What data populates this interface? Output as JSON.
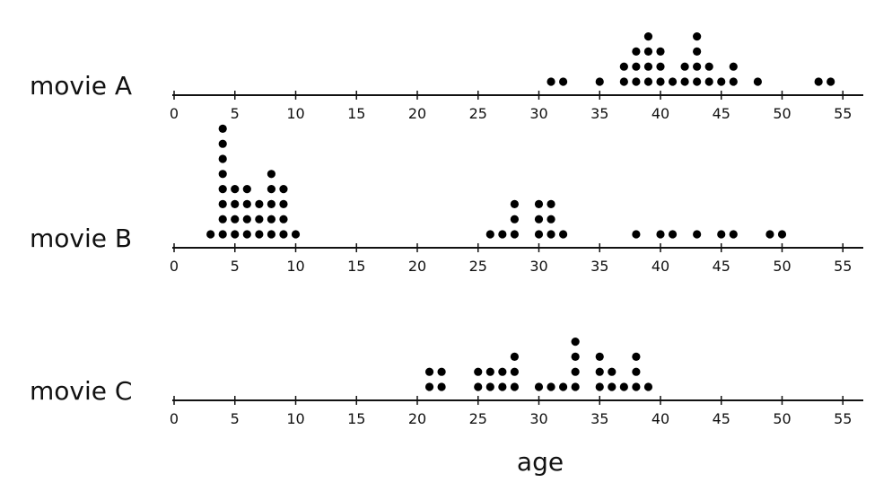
{
  "chart_data": {
    "type": "dot plot",
    "x_axis_label": "age",
    "x_ticks": [
      0,
      5,
      10,
      15,
      20,
      25,
      30,
      35,
      40,
      45,
      50,
      55
    ],
    "x_range": [
      0,
      57
    ],
    "plots": [
      {
        "label": "movie A",
        "points": [
          {
            "age": 31,
            "count": 1
          },
          {
            "age": 32,
            "count": 1
          },
          {
            "age": 35,
            "count": 1
          },
          {
            "age": 37,
            "count": 2
          },
          {
            "age": 38,
            "count": 3
          },
          {
            "age": 39,
            "count": 4
          },
          {
            "age": 40,
            "count": 3
          },
          {
            "age": 41,
            "count": 1
          },
          {
            "age": 42,
            "count": 2
          },
          {
            "age": 43,
            "count": 4
          },
          {
            "age": 44,
            "count": 2
          },
          {
            "age": 45,
            "count": 1
          },
          {
            "age": 46,
            "count": 2
          },
          {
            "age": 48,
            "count": 1
          },
          {
            "age": 53,
            "count": 1
          },
          {
            "age": 54,
            "count": 1
          }
        ]
      },
      {
        "label": "movie B",
        "points": [
          {
            "age": 3,
            "count": 1
          },
          {
            "age": 4,
            "count": 8
          },
          {
            "age": 5,
            "count": 4
          },
          {
            "age": 6,
            "count": 4
          },
          {
            "age": 7,
            "count": 3
          },
          {
            "age": 8,
            "count": 5
          },
          {
            "age": 9,
            "count": 4
          },
          {
            "age": 10,
            "count": 1
          },
          {
            "age": 26,
            "count": 1
          },
          {
            "age": 27,
            "count": 1
          },
          {
            "age": 28,
            "count": 3
          },
          {
            "age": 30,
            "count": 3
          },
          {
            "age": 31,
            "count": 3
          },
          {
            "age": 32,
            "count": 1
          },
          {
            "age": 38,
            "count": 1
          },
          {
            "age": 40,
            "count": 1
          },
          {
            "age": 41,
            "count": 1
          },
          {
            "age": 43,
            "count": 1
          },
          {
            "age": 45,
            "count": 1
          },
          {
            "age": 46,
            "count": 1
          },
          {
            "age": 49,
            "count": 1
          },
          {
            "age": 50,
            "count": 1
          }
        ]
      },
      {
        "label": "movie C",
        "points": [
          {
            "age": 21,
            "count": 2
          },
          {
            "age": 22,
            "count": 2
          },
          {
            "age": 25,
            "count": 2
          },
          {
            "age": 26,
            "count": 2
          },
          {
            "age": 27,
            "count": 2
          },
          {
            "age": 28,
            "count": 3
          },
          {
            "age": 30,
            "count": 1
          },
          {
            "age": 31,
            "count": 1
          },
          {
            "age": 32,
            "count": 1
          },
          {
            "age": 33,
            "count": 4
          },
          {
            "age": 35,
            "count": 3
          },
          {
            "age": 36,
            "count": 2
          },
          {
            "age": 37,
            "count": 1
          },
          {
            "age": 38,
            "count": 3
          },
          {
            "age": 39,
            "count": 1
          }
        ]
      }
    ]
  }
}
